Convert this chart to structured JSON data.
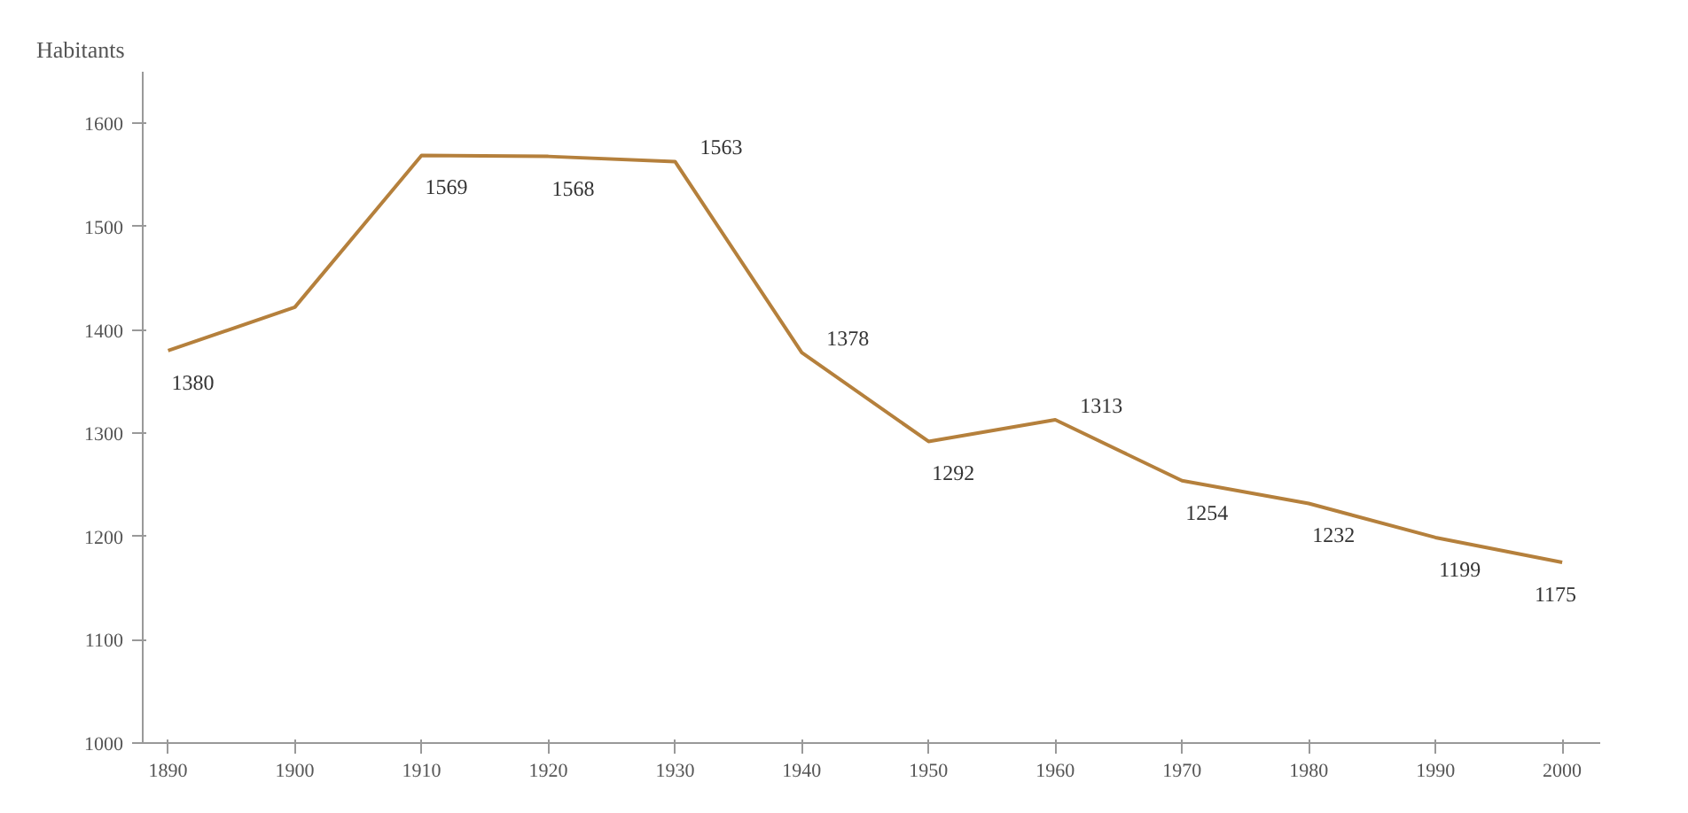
{
  "chart_data": {
    "type": "line",
    "ylabel": "Habitants",
    "x": [
      1890,
      1900,
      1910,
      1920,
      1930,
      1940,
      1950,
      1960,
      1970,
      1980,
      1990,
      2000
    ],
    "series": [
      {
        "color": "#b5803c",
        "values": [
          1380,
          1422,
          1569,
          1568,
          1563,
          1378,
          1292,
          1313,
          1254,
          1232,
          1199,
          1175
        ],
        "value_labels": [
          "1380",
          null,
          "1569",
          "1568",
          "1563",
          "1378",
          "1292",
          "1313",
          "1254",
          "1232",
          "1199",
          "1175"
        ]
      }
    ],
    "xlim": [
      1888,
      2003
    ],
    "xticks": [
      1890,
      1900,
      1910,
      1920,
      1930,
      1940,
      1950,
      1960,
      1970,
      1980,
      1990,
      2000
    ],
    "ylim": [
      1000,
      1650
    ],
    "yticks": [
      1000,
      1100,
      1200,
      1300,
      1400,
      1500,
      1600
    ],
    "grid": false,
    "marker": "none",
    "line_style": "solid"
  }
}
